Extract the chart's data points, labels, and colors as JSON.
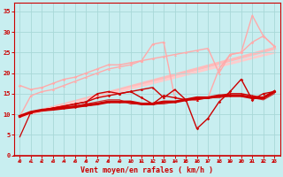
{
  "bg_color": "#c8eef0",
  "grid_color": "#a8d8d8",
  "xlabel": "Vent moyen/en rafales ( km/h )",
  "xlabel_color": "#cc0000",
  "tick_color": "#cc0000",
  "xlim": [
    -0.5,
    23.5
  ],
  "ylim": [
    0,
    37
  ],
  "yticks": [
    0,
    5,
    10,
    15,
    20,
    25,
    30,
    35
  ],
  "xticks": [
    0,
    1,
    2,
    3,
    4,
    5,
    6,
    7,
    8,
    9,
    10,
    11,
    12,
    13,
    14,
    15,
    16,
    17,
    18,
    19,
    20,
    21,
    22,
    23
  ],
  "lines": [
    {
      "x": [
        0,
        1,
        2,
        3,
        4,
        5,
        6,
        7,
        8,
        9,
        10,
        11,
        12,
        13,
        14,
        15,
        16,
        17,
        18,
        19,
        20,
        21,
        22,
        23
      ],
      "y": [
        9.5,
        10.5,
        11.0,
        11.2,
        11.5,
        11.8,
        12.2,
        12.5,
        13.0,
        13.0,
        13.0,
        12.5,
        12.5,
        13.0,
        13.0,
        13.5,
        14.0,
        14.0,
        14.5,
        14.5,
        14.5,
        14.0,
        14.0,
        15.5
      ],
      "color": "#cc0000",
      "lw": 2.2,
      "marker": "o",
      "ms": 1.8,
      "zorder": 5
    },
    {
      "x": [
        0,
        1,
        2,
        3,
        4,
        5,
        6,
        7,
        8,
        9,
        10,
        11,
        12,
        13,
        14,
        15,
        16,
        17,
        18,
        19,
        20,
        21,
        22,
        23
      ],
      "y": [
        9.5,
        10.5,
        11.0,
        11.5,
        12.0,
        12.5,
        13.0,
        14.0,
        14.5,
        15.0,
        15.5,
        14.0,
        12.5,
        14.5,
        14.0,
        13.5,
        6.5,
        9.0,
        13.0,
        15.5,
        18.5,
        13.5,
        15.0,
        15.5
      ],
      "color": "#cc0000",
      "lw": 1.0,
      "marker": "D",
      "ms": 1.8,
      "zorder": 4
    },
    {
      "x": [
        0,
        1,
        2,
        3,
        4,
        5,
        6,
        7,
        8,
        9,
        10,
        11,
        12,
        13,
        14,
        15,
        16,
        17,
        18,
        19,
        20,
        21,
        22,
        23
      ],
      "y": [
        9.5,
        10.5,
        11.0,
        11.5,
        12.0,
        12.5,
        13.0,
        15.0,
        15.5,
        15.0,
        15.5,
        16.0,
        16.5,
        14.0,
        16.0,
        13.5,
        13.5,
        14.0,
        14.5,
        15.0,
        15.0,
        14.5,
        14.0,
        15.5
      ],
      "color": "#cc0000",
      "lw": 1.0,
      "marker": "^",
      "ms": 2.0,
      "zorder": 4
    },
    {
      "x": [
        0,
        1,
        2,
        3,
        4,
        5,
        6,
        7,
        8,
        9,
        10,
        11,
        12,
        13,
        14,
        15,
        16,
        17,
        18,
        19,
        20,
        21,
        22,
        23
      ],
      "y": [
        9.5,
        10.5,
        10.8,
        11.2,
        11.8,
        12.0,
        12.5,
        13.0,
        13.5,
        13.5,
        12.5,
        12.5,
        12.5,
        12.5,
        13.0,
        13.5,
        14.0,
        14.0,
        14.0,
        14.5,
        14.5,
        14.0,
        13.5,
        15.0
      ],
      "color": "#cc3333",
      "lw": 0.9,
      "marker": null,
      "ms": 0,
      "zorder": 3
    },
    {
      "x": [
        0,
        1,
        2,
        3,
        4,
        5,
        6,
        7,
        8,
        9,
        10,
        11,
        12,
        13,
        14,
        15,
        16,
        17,
        18,
        19,
        20,
        21,
        22,
        23
      ],
      "y": [
        4.5,
        10.5,
        11.0,
        11.2,
        11.5,
        11.8,
        12.0,
        12.5,
        13.0,
        13.0,
        13.0,
        12.5,
        12.5,
        13.0,
        13.0,
        13.5,
        14.0,
        14.0,
        14.5,
        14.5,
        14.5,
        14.0,
        14.0,
        15.5
      ],
      "color": "#cc0000",
      "lw": 0.9,
      "marker": null,
      "ms": 0,
      "zorder": 3
    },
    {
      "x": [
        0,
        1,
        2,
        3,
        4,
        5,
        6,
        7,
        8,
        9,
        10,
        11,
        12,
        13,
        14,
        15,
        16,
        17,
        18,
        19,
        20,
        21,
        22,
        23
      ],
      "y": [
        9.5,
        14.5,
        15.5,
        16.0,
        17.0,
        18.0,
        19.0,
        20.0,
        21.0,
        21.5,
        22.0,
        23.0,
        23.5,
        24.0,
        24.5,
        25.0,
        25.5,
        26.0,
        20.0,
        24.5,
        25.0,
        34.0,
        29.0,
        26.5
      ],
      "color": "#ffaaaa",
      "lw": 1.0,
      "marker": "^",
      "ms": 2.0,
      "zorder": 2
    },
    {
      "x": [
        0,
        1,
        2,
        3,
        4,
        5,
        6,
        7,
        8,
        9,
        10,
        11,
        12,
        13,
        14,
        15,
        16,
        17,
        18,
        19,
        20,
        21,
        22,
        23
      ],
      "y": [
        17.0,
        16.0,
        16.5,
        17.5,
        18.5,
        19.0,
        20.0,
        21.0,
        22.0,
        22.0,
        22.5,
        23.0,
        27.0,
        27.5,
        14.0,
        13.5,
        13.5,
        14.0,
        21.0,
        24.5,
        25.0,
        27.5,
        29.0,
        26.5
      ],
      "color": "#ffaaaa",
      "lw": 1.0,
      "marker": "D",
      "ms": 1.8,
      "zorder": 2
    },
    {
      "x": [
        0,
        23
      ],
      "y": [
        9.5,
        26.0
      ],
      "color": "#ffbbbb",
      "lw": 2.5,
      "marker": null,
      "ms": 0,
      "zorder": 1
    },
    {
      "x": [
        0,
        23
      ],
      "y": [
        9.5,
        25.0
      ],
      "color": "#ffcccc",
      "lw": 2.0,
      "marker": null,
      "ms": 0,
      "zorder": 1
    }
  ],
  "arrow_color": "#cc0000",
  "spine_color": "#cc0000"
}
